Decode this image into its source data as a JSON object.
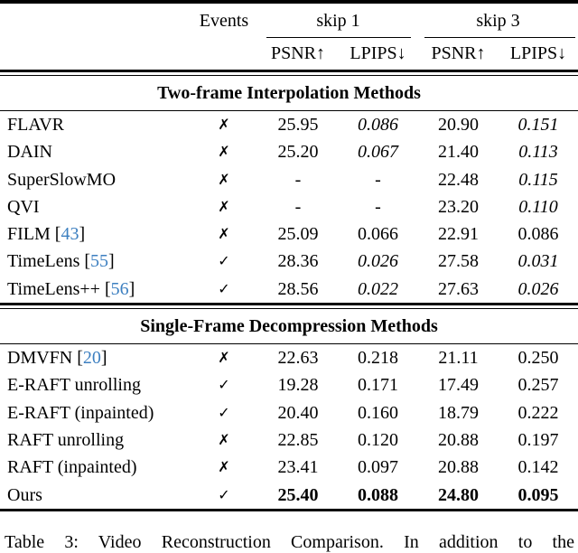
{
  "colors": {
    "citation_blue": "#3c7fc0",
    "text": "#000000"
  },
  "table": {
    "header": {
      "events": "Events",
      "skip1": "skip 1",
      "skip3": "skip 3",
      "psnr": "PSNR↑",
      "lpips": "LPIPS↓"
    },
    "glyphs": {
      "check": "✓",
      "cross": "✗"
    },
    "sections": [
      {
        "title": "Two-frame Interpolation Methods",
        "rows": [
          {
            "method": "FLAVR",
            "cite": null,
            "events": "cross",
            "values": [
              "25.95",
              "0.086",
              "20.90",
              "0.151"
            ],
            "italic": [
              false,
              true,
              false,
              true
            ],
            "bold": false
          },
          {
            "method": "DAIN",
            "cite": null,
            "events": "cross",
            "values": [
              "25.20",
              "0.067",
              "21.40",
              "0.113"
            ],
            "italic": [
              false,
              true,
              false,
              true
            ],
            "bold": false
          },
          {
            "method": "SuperSlowMO",
            "cite": null,
            "events": "cross",
            "values": [
              "-",
              "-",
              "22.48",
              "0.115"
            ],
            "italic": [
              false,
              false,
              false,
              true
            ],
            "bold": false
          },
          {
            "method": "QVI",
            "cite": null,
            "events": "cross",
            "values": [
              "-",
              "-",
              "23.20",
              "0.110"
            ],
            "italic": [
              false,
              false,
              false,
              true
            ],
            "bold": false
          },
          {
            "method": "FILM",
            "cite": "43",
            "events": "cross",
            "values": [
              "25.09",
              "0.066",
              "22.91",
              "0.086"
            ],
            "italic": [
              false,
              false,
              false,
              false
            ],
            "bold": false
          },
          {
            "method": "TimeLens",
            "cite": "55",
            "events": "check",
            "values": [
              "28.36",
              "0.026",
              "27.58",
              "0.031"
            ],
            "italic": [
              false,
              true,
              false,
              true
            ],
            "bold": false
          },
          {
            "method": "TimeLens++",
            "cite": "56",
            "events": "check",
            "values": [
              "28.56",
              "0.022",
              "27.63",
              "0.026"
            ],
            "italic": [
              false,
              true,
              false,
              true
            ],
            "bold": false
          }
        ]
      },
      {
        "title": "Single-Frame Decompression Methods",
        "rows": [
          {
            "method": "DMVFN",
            "cite": "20",
            "events": "cross",
            "values": [
              "22.63",
              "0.218",
              "21.11",
              "0.250"
            ],
            "italic": [
              false,
              false,
              false,
              false
            ],
            "bold": false
          },
          {
            "method": "E-RAFT unrolling",
            "cite": null,
            "events": "check",
            "values": [
              "19.28",
              "0.171",
              "17.49",
              "0.257"
            ],
            "italic": [
              false,
              false,
              false,
              false
            ],
            "bold": false
          },
          {
            "method": "E-RAFT (inpainted)",
            "cite": null,
            "events": "check",
            "values": [
              "20.40",
              "0.160",
              "18.79",
              "0.222"
            ],
            "italic": [
              false,
              false,
              false,
              false
            ],
            "bold": false
          },
          {
            "method": "RAFT unrolling",
            "cite": null,
            "events": "cross",
            "values": [
              "22.85",
              "0.120",
              "20.88",
              "0.197"
            ],
            "italic": [
              false,
              false,
              false,
              false
            ],
            "bold": false
          },
          {
            "method": "RAFT (inpainted)",
            "cite": null,
            "events": "cross",
            "values": [
              "23.41",
              "0.097",
              "20.88",
              "0.142"
            ],
            "italic": [
              false,
              false,
              false,
              false
            ],
            "bold": false
          },
          {
            "method": "Ours",
            "cite": null,
            "events": "check",
            "values": [
              "25.40",
              "0.088",
              "24.80",
              "0.095"
            ],
            "italic": [
              false,
              false,
              false,
              false
            ],
            "bold": true
          }
        ]
      }
    ],
    "caption": "Table 3: Video Reconstruction Comparison. In addition to the"
  }
}
